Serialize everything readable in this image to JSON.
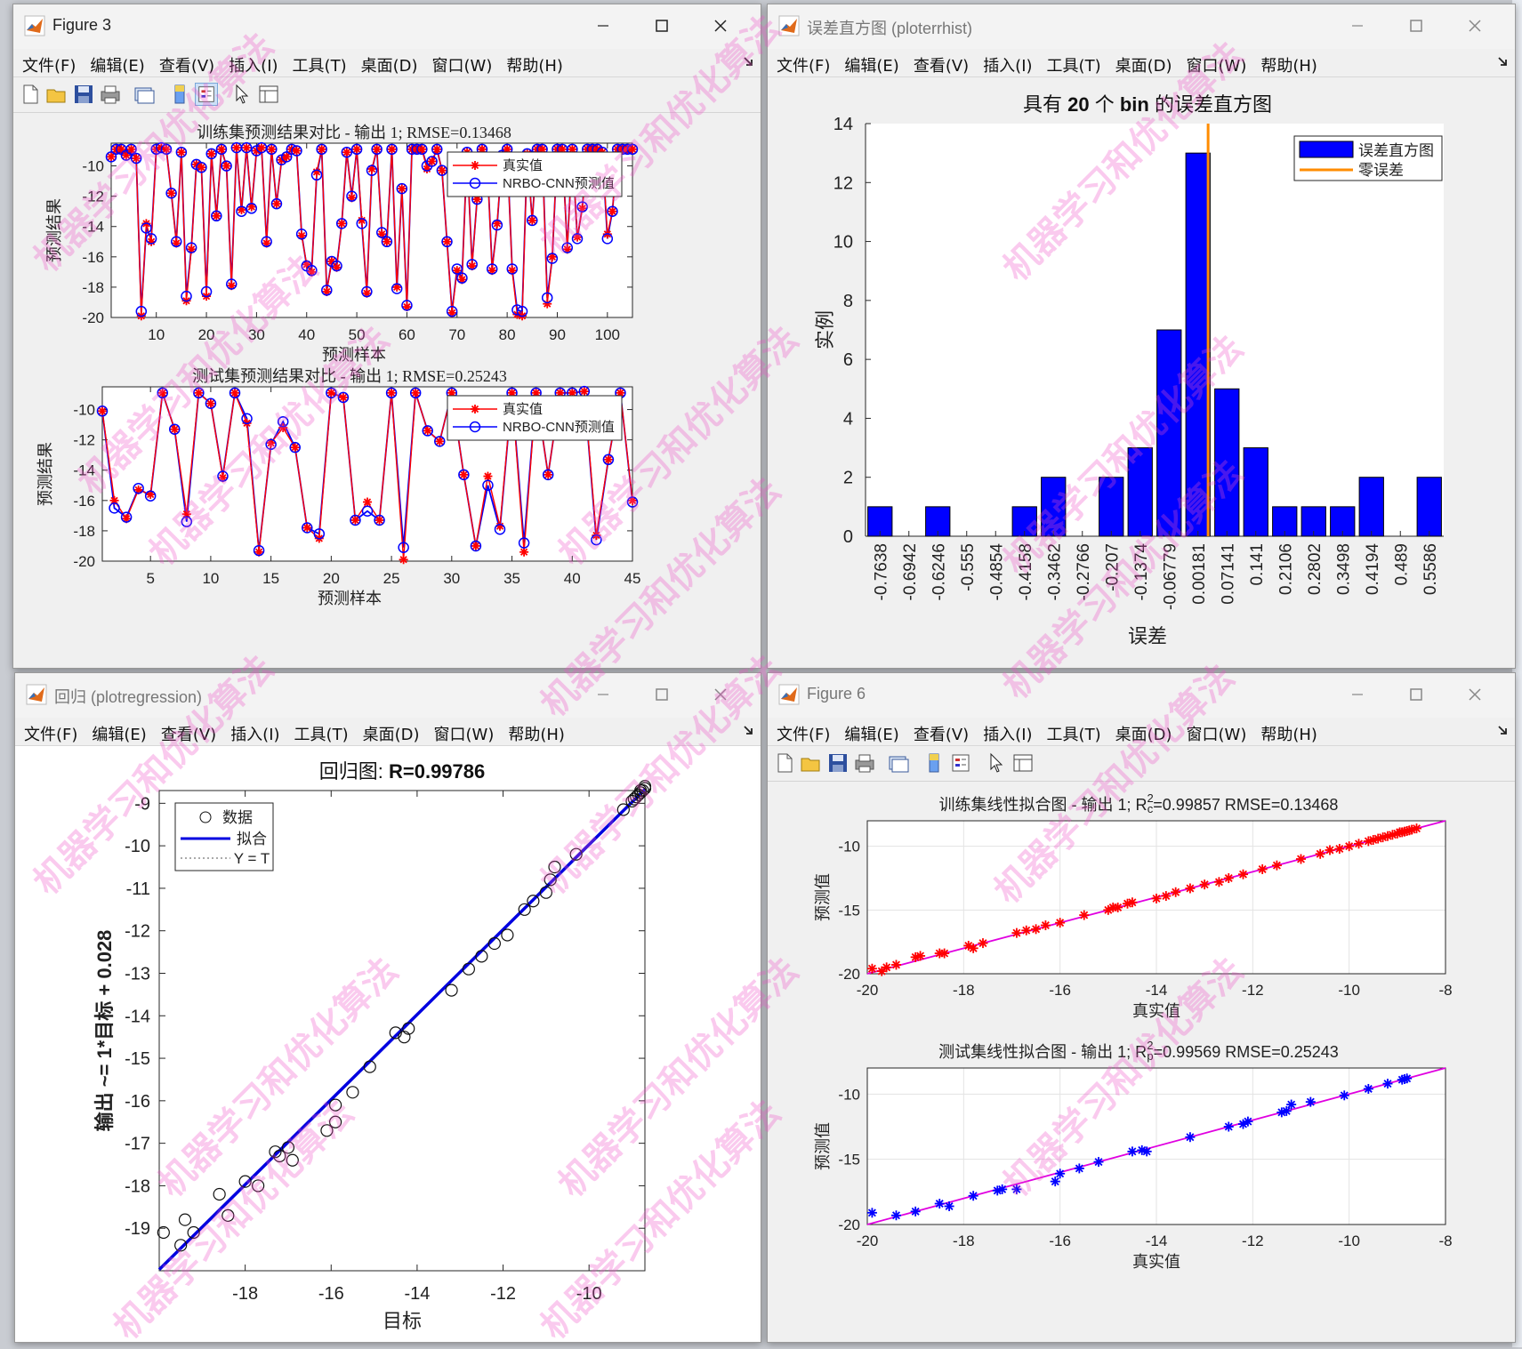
{
  "menus": [
    "文件(F)",
    "编辑(E)",
    "查看(V)",
    "插入(I)",
    "工具(T)",
    "桌面(D)",
    "窗口(W)",
    "帮助(H)"
  ],
  "windows": {
    "fig3": {
      "title": "Figure 3",
      "chart_data": [
        {
          "type": "line",
          "title": "训练集预测结果对比 - 输出 1; RMSE=0.13468",
          "xlabel": "预测样本",
          "ylabel": "预测结果",
          "xlim": [
            1,
            105
          ],
          "ylim": [
            -20,
            -8.5
          ],
          "xticks": [
            10,
            20,
            30,
            40,
            50,
            60,
            70,
            80,
            90,
            100
          ],
          "yticks": [
            -10,
            -12,
            -14,
            -16,
            -18,
            -20
          ],
          "legend": [
            "真实值",
            "NRBO-CNN预测值"
          ],
          "legend_position": "top-right",
          "x": [
            1,
            2,
            3,
            4,
            5,
            6,
            7,
            8,
            9,
            10,
            11,
            12,
            13,
            14,
            15,
            16,
            17,
            18,
            19,
            20,
            21,
            22,
            23,
            24,
            25,
            26,
            27,
            28,
            29,
            30,
            31,
            32,
            33,
            34,
            35,
            36,
            37,
            38,
            39,
            40,
            41,
            42,
            43,
            44,
            45,
            46,
            47,
            48,
            49,
            50,
            51,
            52,
            53,
            54,
            55,
            56,
            57,
            58,
            59,
            60,
            61,
            62,
            63,
            64,
            65,
            66,
            67,
            68,
            69,
            70,
            71,
            72,
            73,
            74,
            75,
            76,
            77,
            78,
            79,
            80,
            81,
            82,
            83,
            84,
            85,
            86,
            87,
            88,
            89,
            90,
            91,
            92,
            93,
            94,
            95,
            96,
            97,
            98,
            99,
            100,
            101,
            102,
            103,
            104,
            105
          ],
          "series": [
            {
              "name": "真实值",
              "values": [
                -9.4,
                -8.9,
                -8.9,
                -9.3,
                -8.9,
                -9.5,
                -19.9,
                -13.8,
                -15.0,
                -8.9,
                -8.8,
                -8.9,
                -11.8,
                -15.1,
                -9.1,
                -18.9,
                -15.5,
                -9.9,
                -10.1,
                -18.6,
                -9.2,
                -13.3,
                -8.9,
                -10.0,
                -17.9,
                -8.8,
                -12.9,
                -8.8,
                -12.7,
                -9.0,
                -8.8,
                -15.1,
                -8.9,
                -12.5,
                -9.6,
                -9.4,
                -8.9,
                -9.0,
                -14.6,
                -16.5,
                -17.0,
                -10.4,
                -8.9,
                -18.3,
                -16.3,
                -16.7,
                -13.8,
                -9.1,
                -12.1,
                -8.9,
                -13.6,
                -18.4,
                -10.2,
                -8.9,
                -14.5,
                -15.0,
                -8.9,
                -18.0,
                -11.5,
                -19.3,
                -8.9,
                -8.9,
                -8.9,
                -10.2,
                -9.7,
                -8.9,
                -10.3,
                -15.0,
                -19.7,
                -16.9,
                -17.5,
                -9.1,
                -16.6,
                -12.2,
                -8.9,
                -9.5,
                -16.9,
                -13.8,
                -9.3,
                -8.9,
                -16.9,
                -19.8,
                -19.9,
                -9.2,
                -13.6,
                -8.9,
                -8.9,
                -19.1,
                -16.0,
                -8.9,
                -8.9,
                -15.5,
                -8.9,
                -14.7,
                -12.8,
                -8.9,
                -8.9,
                -8.9,
                -9.1,
                -14.5,
                -13.0,
                -8.9,
                -8.9,
                -8.9,
                -8.9
              ]
            },
            {
              "name": "NRBO-CNN预测值",
              "values": [
                -9.4,
                -8.9,
                -8.9,
                -9.3,
                -8.9,
                -9.5,
                -19.6,
                -14.1,
                -14.8,
                -8.9,
                -8.8,
                -8.9,
                -11.8,
                -15.0,
                -9.1,
                -18.6,
                -15.4,
                -9.9,
                -10.1,
                -18.3,
                -9.2,
                -13.3,
                -8.9,
                -10.0,
                -17.8,
                -8.8,
                -13.0,
                -8.8,
                -12.8,
                -9.0,
                -8.8,
                -15.0,
                -8.9,
                -12.5,
                -9.6,
                -9.4,
                -8.9,
                -9.0,
                -14.5,
                -16.6,
                -16.9,
                -10.6,
                -8.9,
                -18.2,
                -16.3,
                -16.6,
                -13.8,
                -9.1,
                -12.0,
                -8.9,
                -13.8,
                -18.3,
                -10.3,
                -8.9,
                -14.4,
                -15.0,
                -8.9,
                -18.1,
                -11.5,
                -19.2,
                -8.9,
                -8.9,
                -8.9,
                -10.0,
                -9.7,
                -8.9,
                -10.3,
                -15.0,
                -19.6,
                -16.8,
                -17.4,
                -9.1,
                -16.5,
                -12.2,
                -8.9,
                -9.5,
                -16.8,
                -13.9,
                -9.3,
                -8.9,
                -16.8,
                -19.5,
                -19.6,
                -9.2,
                -13.6,
                -8.9,
                -8.9,
                -18.7,
                -16.1,
                -8.9,
                -8.9,
                -15.4,
                -8.9,
                -14.8,
                -12.7,
                -8.9,
                -8.9,
                -8.9,
                -9.1,
                -14.8,
                -13.0,
                -8.9,
                -8.9,
                -8.9,
                -8.9
              ]
            }
          ]
        },
        {
          "type": "line",
          "title": "测试集预测结果对比 - 输出 1; RMSE=0.25243",
          "xlabel": "预测样本",
          "ylabel": "预测结果",
          "xlim": [
            1,
            45
          ],
          "ylim": [
            -20,
            -8.5
          ],
          "xticks": [
            5,
            10,
            15,
            20,
            25,
            30,
            35,
            40,
            45
          ],
          "yticks": [
            -10,
            -12,
            -14,
            -16,
            -18,
            -20
          ],
          "legend": [
            "真实值",
            "NRBO-CNN预测值"
          ],
          "legend_position": "top-right",
          "x": [
            1,
            2,
            3,
            4,
            5,
            6,
            7,
            8,
            9,
            10,
            11,
            12,
            13,
            14,
            15,
            16,
            17,
            18,
            19,
            20,
            21,
            22,
            23,
            24,
            25,
            26,
            27,
            28,
            29,
            30,
            31,
            32,
            33,
            34,
            35,
            36,
            37,
            38,
            39,
            40,
            41,
            42,
            43,
            44,
            45
          ],
          "series": [
            {
              "name": "真实值",
              "values": [
                -10.1,
                -16.0,
                -17.2,
                -15.3,
                -15.6,
                -8.9,
                -11.3,
                -16.9,
                -8.9,
                -9.6,
                -14.5,
                -8.9,
                -10.9,
                -19.4,
                -12.2,
                -11.2,
                -12.5,
                -17.8,
                -18.5,
                -8.9,
                -9.2,
                -17.3,
                -16.1,
                -17.3,
                -8.9,
                -19.9,
                -8.9,
                -11.4,
                -12.1,
                -8.9,
                -14.3,
                -19.0,
                -14.4,
                -17.7,
                -8.9,
                -19.4,
                -8.9,
                -14.3,
                -8.9,
                -8.9,
                -8.8,
                -18.3,
                -13.3,
                -8.9,
                -16.0
              ]
            },
            {
              "name": "NRBO-CNN预测值",
              "values": [
                -10.1,
                -16.5,
                -17.1,
                -15.2,
                -15.7,
                -8.9,
                -11.3,
                -17.4,
                -8.9,
                -9.6,
                -14.4,
                -8.9,
                -10.6,
                -19.3,
                -12.3,
                -10.8,
                -12.5,
                -17.8,
                -18.2,
                -8.9,
                -9.2,
                -17.3,
                -16.7,
                -17.3,
                -8.9,
                -19.1,
                -8.9,
                -11.4,
                -12.1,
                -8.9,
                -14.3,
                -19.0,
                -15.0,
                -17.9,
                -8.9,
                -18.8,
                -8.9,
                -14.3,
                -8.9,
                -8.9,
                -8.8,
                -18.6,
                -13.3,
                -8.9,
                -16.1
              ]
            }
          ]
        }
      ]
    },
    "hist": {
      "title": "误差直方图 (ploterrhist)",
      "chart_data": {
        "type": "bar",
        "title": "具有 20 个 bin 的误差直方图",
        "title_prefix": "具有 ",
        "title_bins": "20",
        "title_mid": " 个 ",
        "title_bin": "bin",
        "title_suffix": " 的误差直方图",
        "xlabel": "误差",
        "ylabel": "实例",
        "categories": [
          "-0.7638",
          "-0.6942",
          "-0.6246",
          "-0.555",
          "-0.4854",
          "-0.4158",
          "-0.3462",
          "-0.2766",
          "-0.207",
          "-0.1374",
          "-0.06779",
          "0.00181",
          "0.07141",
          "0.141",
          "0.2106",
          "0.2802",
          "0.3498",
          "0.4194",
          "0.489",
          "0.5586"
        ],
        "values": [
          1,
          0,
          1,
          0,
          0,
          1,
          2,
          0,
          2,
          3,
          7,
          13,
          5,
          3,
          1,
          1,
          1,
          2,
          0,
          2
        ],
        "zero_error_category_index": 11.35,
        "ylim": [
          0,
          14
        ],
        "yticks": [
          0,
          2,
          4,
          6,
          8,
          10,
          12,
          14
        ],
        "legend": [
          "误差直方图",
          "零误差"
        ],
        "legend_position": "top-right",
        "colors": {
          "bars": "#0000ff",
          "zero_line": "#ff8c00"
        }
      }
    },
    "reg": {
      "title": "回归 (plotregression)",
      "chart_data": {
        "type": "scatter",
        "title_prefix": "回归图: ",
        "title_value": "R=0.99786",
        "xlabel": "目标",
        "ylabel": "输出 ~= 1*目标 + 0.028",
        "xlim": [
          -20.0,
          -8.7
        ],
        "ylim": [
          -20.0,
          -8.7
        ],
        "xticks": [
          -18,
          -16,
          -14,
          -12,
          -10
        ],
        "yticks": [
          -9,
          -10,
          -11,
          -12,
          -13,
          -14,
          -15,
          -16,
          -17,
          -18,
          -19
        ],
        "legend": [
          "数据",
          "拟合",
          "Y = T"
        ],
        "legend_position": "top-left",
        "fit_line": {
          "slope": 1,
          "intercept": 0.028
        },
        "x": [
          -19.9,
          -19.4,
          -19.5,
          -19.2,
          -18.6,
          -18.4,
          -18.0,
          -17.7,
          -17.3,
          -17.2,
          -17.0,
          -16.9,
          -16.1,
          -15.9,
          -15.9,
          -15.5,
          -15.1,
          -14.5,
          -14.3,
          -14.2,
          -13.2,
          -12.8,
          -12.5,
          -12.2,
          -11.9,
          -11.5,
          -11.3,
          -11.0,
          -10.9,
          -10.8,
          -10.3,
          -9.2,
          -9.0,
          -8.95,
          -8.9,
          -8.85,
          -8.8,
          -8.8,
          -8.75,
          -8.7,
          -8.7
        ],
        "y": [
          -19.1,
          -18.8,
          -19.4,
          -19.1,
          -18.2,
          -18.7,
          -17.9,
          -18.0,
          -17.2,
          -17.3,
          -17.1,
          -17.4,
          -16.7,
          -16.1,
          -16.5,
          -15.8,
          -15.2,
          -14.4,
          -14.5,
          -14.3,
          -13.4,
          -12.9,
          -12.6,
          -12.3,
          -12.1,
          -11.5,
          -11.3,
          -11.1,
          -10.8,
          -10.5,
          -10.2,
          -9.15,
          -8.95,
          -8.9,
          -8.85,
          -8.8,
          -8.75,
          -8.7,
          -8.7,
          -8.65,
          -8.6
        ]
      }
    },
    "fig6": {
      "title": "Figure 6",
      "chart_data": [
        {
          "type": "scatter",
          "title_prefix": "训练集线性拟合图 - 输出 1; R",
          "title_sub": "c",
          "title_sup": "2",
          "title_suffix": "=0.99857  RMSE=0.13468",
          "xlabel": "真实值",
          "ylabel": "预测值",
          "xlim": [
            -20,
            -8
          ],
          "ylim": [
            -20,
            -8
          ],
          "xticks": [
            -20,
            -18,
            -16,
            -14,
            -12,
            -10,
            -8
          ],
          "yticks": [
            -10,
            -15,
            -20
          ],
          "grid": true,
          "marker_color": "#ff0000",
          "line_color": "#e000e0",
          "x": [
            -19.9,
            -19.7,
            -19.6,
            -19.4,
            -19.0,
            -18.9,
            -18.5,
            -18.4,
            -17.9,
            -17.8,
            -17.6,
            -16.9,
            -16.7,
            -16.5,
            -16.3,
            -16.0,
            -15.5,
            -15.0,
            -14.9,
            -14.8,
            -14.6,
            -14.5,
            -14.0,
            -13.8,
            -13.6,
            -13.3,
            -13.0,
            -12.7,
            -12.5,
            -12.2,
            -11.8,
            -11.5,
            -11.0,
            -10.6,
            -10.4,
            -10.2,
            -10.0,
            -9.8,
            -9.6,
            -9.5,
            -9.4,
            -9.3,
            -9.2,
            -9.1,
            -9.0,
            -8.95,
            -8.9,
            -8.85,
            -8.8,
            -8.75,
            -8.7,
            -8.6
          ],
          "y": [
            -19.6,
            -19.8,
            -19.5,
            -19.3,
            -18.7,
            -18.6,
            -18.4,
            -18.4,
            -17.8,
            -18.0,
            -17.6,
            -16.8,
            -16.6,
            -16.5,
            -16.2,
            -16.0,
            -15.4,
            -15.0,
            -14.8,
            -14.8,
            -14.5,
            -14.4,
            -14.1,
            -13.9,
            -13.6,
            -13.3,
            -13.0,
            -12.8,
            -12.5,
            -12.2,
            -11.8,
            -11.5,
            -11.0,
            -10.6,
            -10.3,
            -10.2,
            -10.0,
            -9.8,
            -9.6,
            -9.5,
            -9.4,
            -9.3,
            -9.2,
            -9.1,
            -9.0,
            -8.9,
            -8.9,
            -8.85,
            -8.8,
            -8.75,
            -8.7,
            -8.6
          ]
        },
        {
          "type": "scatter",
          "title_prefix": "测试集线性拟合图 - 输出 1; R",
          "title_sub": "p",
          "title_sup": "2",
          "title_suffix": "=0.99569  RMSE=0.25243",
          "xlabel": "真实值",
          "ylabel": "预测值",
          "xlim": [
            -20,
            -8
          ],
          "ylim": [
            -20,
            -8
          ],
          "xticks": [
            -20,
            -18,
            -16,
            -14,
            -12,
            -10,
            -8
          ],
          "yticks": [
            -10,
            -15,
            -20
          ],
          "grid": true,
          "marker_color": "#0000ff",
          "line_color": "#e000e0",
          "x": [
            -19.9,
            -19.4,
            -19.0,
            -18.5,
            -18.3,
            -17.8,
            -17.3,
            -17.2,
            -16.9,
            -16.1,
            -16.0,
            -15.6,
            -15.2,
            -14.5,
            -14.3,
            -14.2,
            -13.3,
            -12.5,
            -12.2,
            -12.1,
            -11.4,
            -11.3,
            -11.2,
            -10.8,
            -10.1,
            -9.6,
            -9.2,
            -8.9,
            -8.85,
            -8.8
          ],
          "y": [
            -19.1,
            -19.3,
            -19.0,
            -18.4,
            -18.6,
            -17.8,
            -17.4,
            -17.3,
            -17.3,
            -16.7,
            -16.1,
            -15.7,
            -15.2,
            -14.4,
            -14.3,
            -14.4,
            -13.3,
            -12.5,
            -12.3,
            -12.1,
            -11.4,
            -11.3,
            -10.8,
            -10.6,
            -10.1,
            -9.6,
            -9.2,
            -8.9,
            -8.85,
            -8.8
          ]
        }
      ]
    }
  },
  "watermark": "机器学习和优化算法"
}
